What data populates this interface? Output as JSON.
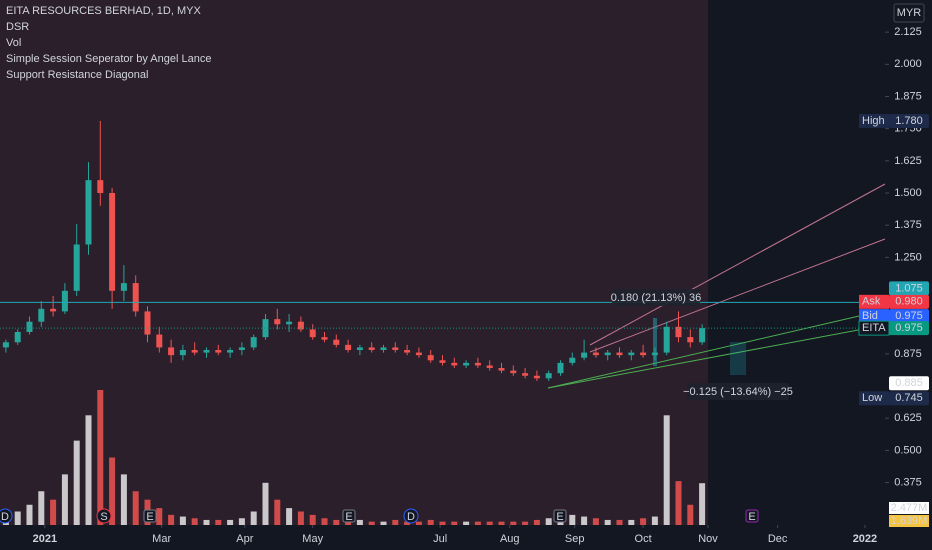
{
  "header": {
    "title": "EITA RESOURCES BERHAD, 1D, MYX",
    "indicators": [
      "DSR",
      "Vol",
      "Simple Session Seperator by Angel Lance",
      "Support Resistance Diagonal"
    ],
    "currency": "MYR"
  },
  "chart_data": {
    "type": "candlestick",
    "up_color": "#26a69a",
    "down_color": "#ef5350",
    "open": [
      0.9,
      0.92,
      0.96,
      1.0,
      1.05,
      1.04,
      1.12,
      1.3,
      1.55,
      1.5,
      1.12,
      1.15,
      1.04,
      0.95,
      0.9,
      0.87,
      0.89,
      0.88,
      0.89,
      0.88,
      0.89,
      0.9,
      0.94,
      1.01,
      0.99,
      1.0,
      0.97,
      0.94,
      0.93,
      0.91,
      0.89,
      0.9,
      0.89,
      0.9,
      0.89,
      0.88,
      0.87,
      0.85,
      0.84,
      0.83,
      0.84,
      0.83,
      0.82,
      0.81,
      0.8,
      0.79,
      0.78,
      0.8,
      0.84,
      0.86,
      0.88,
      0.87,
      0.88,
      0.87,
      0.88,
      0.87,
      0.88,
      0.98,
      0.94,
      0.92
    ],
    "high": [
      0.93,
      0.97,
      1.02,
      1.08,
      1.1,
      1.15,
      1.38,
      1.62,
      1.78,
      1.52,
      1.22,
      1.18,
      1.06,
      0.98,
      0.93,
      0.91,
      0.92,
      0.9,
      0.91,
      0.9,
      0.92,
      0.95,
      1.03,
      1.05,
      1.03,
      1.02,
      0.99,
      0.96,
      0.95,
      0.93,
      0.91,
      0.92,
      0.91,
      0.92,
      0.91,
      0.9,
      0.89,
      0.87,
      0.86,
      0.85,
      0.86,
      0.85,
      0.84,
      0.83,
      0.82,
      0.81,
      0.81,
      0.85,
      0.88,
      0.93,
      0.9,
      0.89,
      0.9,
      0.89,
      0.91,
      0.9,
      1.0,
      1.04,
      0.97,
      0.99
    ],
    "low": [
      0.88,
      0.91,
      0.95,
      0.98,
      1.02,
      1.03,
      1.1,
      1.26,
      1.45,
      1.05,
      1.08,
      1.02,
      0.92,
      0.88,
      0.84,
      0.85,
      0.87,
      0.86,
      0.87,
      0.86,
      0.87,
      0.89,
      0.93,
      0.97,
      0.96,
      0.96,
      0.93,
      0.92,
      0.9,
      0.88,
      0.87,
      0.88,
      0.88,
      0.88,
      0.87,
      0.86,
      0.84,
      0.83,
      0.82,
      0.82,
      0.82,
      0.81,
      0.8,
      0.79,
      0.78,
      0.77,
      0.77,
      0.79,
      0.83,
      0.85,
      0.86,
      0.85,
      0.86,
      0.85,
      0.86,
      0.85,
      0.87,
      0.92,
      0.9,
      0.91
    ],
    "close": [
      0.92,
      0.96,
      1.0,
      1.05,
      1.04,
      1.12,
      1.3,
      1.55,
      1.5,
      1.12,
      1.15,
      1.04,
      0.95,
      0.9,
      0.87,
      0.89,
      0.88,
      0.89,
      0.88,
      0.89,
      0.9,
      0.94,
      1.01,
      0.99,
      1.0,
      0.97,
      0.94,
      0.93,
      0.91,
      0.89,
      0.9,
      0.89,
      0.9,
      0.89,
      0.88,
      0.87,
      0.85,
      0.84,
      0.83,
      0.84,
      0.83,
      0.82,
      0.81,
      0.8,
      0.79,
      0.78,
      0.8,
      0.84,
      0.86,
      0.88,
      0.87,
      0.88,
      0.87,
      0.88,
      0.87,
      0.88,
      0.98,
      0.94,
      0.92,
      0.975
    ],
    "volume": [
      0.5,
      0.8,
      1.2,
      2.0,
      1.5,
      3.0,
      5.0,
      6.5,
      8.0,
      4.0,
      3.0,
      2.0,
      1.5,
      1.0,
      0.6,
      0.5,
      0.4,
      0.3,
      0.3,
      0.3,
      0.4,
      0.8,
      2.5,
      1.5,
      1.0,
      0.8,
      0.6,
      0.4,
      0.3,
      0.3,
      0.3,
      0.2,
      0.2,
      0.3,
      0.2,
      0.2,
      0.3,
      0.2,
      0.2,
      0.2,
      0.2,
      0.2,
      0.2,
      0.2,
      0.2,
      0.3,
      0.4,
      0.8,
      0.6,
      0.5,
      0.4,
      0.3,
      0.3,
      0.3,
      0.4,
      0.5,
      6.5,
      2.6,
      1.2,
      2.477
    ],
    "vlim": [
      0,
      8
    ],
    "xlim": [
      -0.5,
      74.5
    ],
    "ylim": [
      0.21,
      2.25
    ],
    "xticks": [
      {
        "value": 3.3,
        "label": "2021"
      },
      {
        "value": 13.2,
        "label": "Mar"
      },
      {
        "value": 20.25,
        "label": "Apr"
      },
      {
        "value": 26,
        "label": "May"
      },
      {
        "value": 36.8,
        "label": "Jul"
      },
      {
        "value": 42.7,
        "label": "Aug"
      },
      {
        "value": 48.2,
        "label": "Sep"
      },
      {
        "value": 54,
        "label": "Oct"
      },
      {
        "value": 59.5,
        "label": "Nov"
      },
      {
        "value": 65.4,
        "label": "Dec"
      },
      {
        "value": 72.8,
        "label": "2022"
      }
    ],
    "yticks": [
      {
        "value": 2.125,
        "label": "2.125"
      },
      {
        "value": 2.0,
        "label": "2.000"
      },
      {
        "value": 1.875,
        "label": "1.875"
      },
      {
        "value": 1.75,
        "label": "1.750"
      },
      {
        "value": 1.625,
        "label": "1.625"
      },
      {
        "value": 1.5,
        "label": "1.500"
      },
      {
        "value": 1.375,
        "label": "1.375"
      },
      {
        "value": 1.25,
        "label": "1.250"
      },
      {
        "value": 0.875,
        "label": "0.875"
      },
      {
        "value": 0.625,
        "label": "0.625"
      },
      {
        "value": 0.5,
        "label": "0.500"
      },
      {
        "value": 0.375,
        "label": "0.375"
      }
    ],
    "price_labels": [
      {
        "name": "High",
        "value": 1.78,
        "label": "1.780"
      },
      {
        "value": 1.075,
        "label": "1.075"
      },
      {
        "name": "Ask",
        "value": 0.98,
        "label": "0.980"
      },
      {
        "name": "Bid",
        "value": 0.975,
        "label": "0.975"
      },
      {
        "name": "EITA",
        "value": 0.975,
        "label": "0.975"
      },
      {
        "value": 0.885,
        "label": "0.885"
      },
      {
        "name": "Low",
        "value": 0.745,
        "label": "0.745"
      }
    ],
    "volume_labels": [
      "2.477M",
      "1.639M"
    ],
    "measurements": [
      "0.180 (21.13%) 36",
      "−0.125 (−13.64%) −25"
    ],
    "event_markers": [
      "D",
      "S",
      "E",
      "E",
      "D",
      "E",
      "E"
    ]
  }
}
